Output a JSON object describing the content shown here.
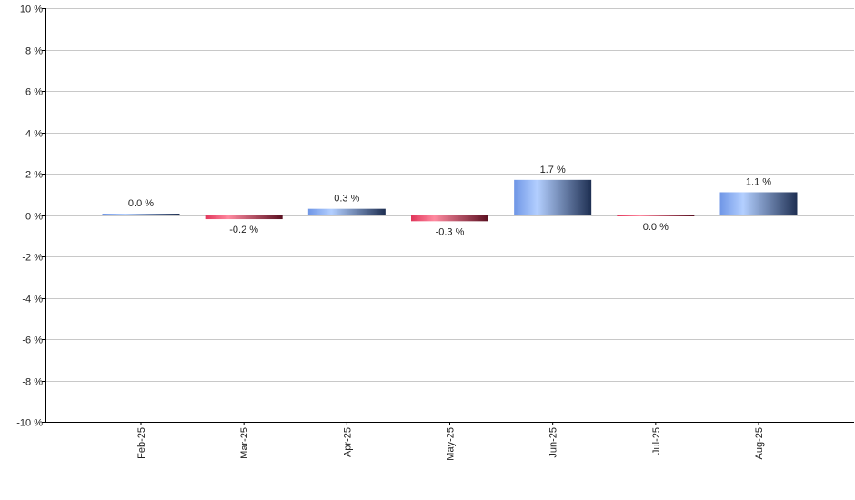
{
  "chart_data": {
    "type": "bar",
    "categories": [
      "Feb-25",
      "Mar-25",
      "Apr-25",
      "May-25",
      "Jun-25",
      "Jul-25",
      "Aug-25"
    ],
    "values": [
      0.05,
      -0.2,
      0.3,
      -0.3,
      1.7,
      -0.05,
      1.1
    ],
    "data_labels": [
      "0.0 %",
      "-0.2 %",
      "0.3 %",
      "-0.3 %",
      "1.7 %",
      "0.0 %",
      "1.1 %"
    ],
    "ylim": [
      -10,
      10
    ],
    "yticks": [
      10,
      8,
      6,
      4,
      2,
      0,
      -2,
      -4,
      -6,
      -8,
      -10
    ],
    "ytick_labels": [
      "10 %",
      "8 %",
      "6 %",
      "4 %",
      "2 %",
      "0 %",
      "-2 %",
      "-4 %",
      "-6 %",
      "-8 %",
      "-10 %"
    ],
    "grid": true,
    "colors": {
      "positive_light": "#9ec1ff",
      "positive_mid": "#6a8fd6",
      "positive_dark": "#1e2f52",
      "negative_light": "#ff5a78",
      "negative_mid": "#c8203f",
      "negative_dark": "#5a0f20",
      "grid": "#c8c8c8",
      "axis": "#000000"
    }
  }
}
